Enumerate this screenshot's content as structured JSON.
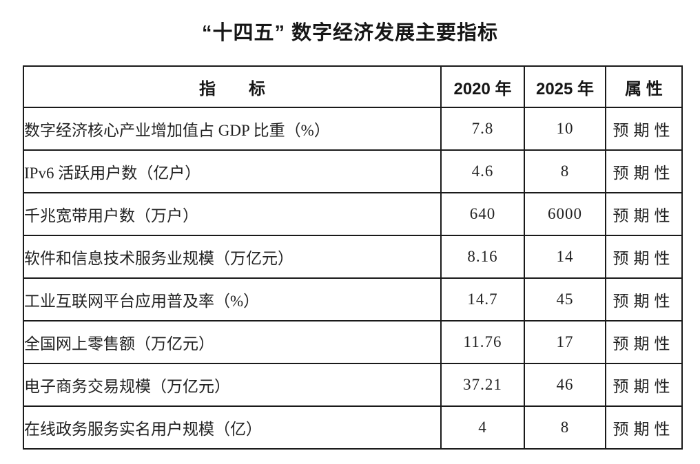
{
  "title": "“十四五” 数字经济发展主要指标",
  "table": {
    "headers": {
      "indicator": "指　　标",
      "y2020": "2020 年",
      "y2025": "2025 年",
      "attribute": "属 性"
    },
    "rows": [
      {
        "indicator": "数字经济核心产业增加值占 GDP 比重（%）",
        "y2020": "7.8",
        "y2025": "10",
        "attribute": "预期性"
      },
      {
        "indicator": "IPv6 活跃用户数（亿户）",
        "y2020": "4.6",
        "y2025": "8",
        "attribute": "预期性"
      },
      {
        "indicator": "千兆宽带用户数（万户）",
        "y2020": "640",
        "y2025": "6000",
        "attribute": "预期性"
      },
      {
        "indicator": "软件和信息技术服务业规模（万亿元）",
        "y2020": "8.16",
        "y2025": "14",
        "attribute": "预期性"
      },
      {
        "indicator": "工业互联网平台应用普及率（%）",
        "y2020": "14.7",
        "y2025": "45",
        "attribute": "预期性"
      },
      {
        "indicator": "全国网上零售额（万亿元）",
        "y2020": "11.76",
        "y2025": "17",
        "attribute": "预期性"
      },
      {
        "indicator": "电子商务交易规模（万亿元）",
        "y2020": "37.21",
        "y2025": "46",
        "attribute": "预期性"
      },
      {
        "indicator": "在线政务服务实名用户规模（亿）",
        "y2020": "4",
        "y2025": "8",
        "attribute": "预期性"
      }
    ]
  },
  "chart_data": {
    "type": "table",
    "title": "“十四五” 数字经济发展主要指标",
    "columns": [
      "指标",
      "2020 年",
      "2025 年",
      "属性"
    ],
    "rows": [
      [
        "数字经济核心产业增加值占 GDP 比重（%）",
        7.8,
        10,
        "预期性"
      ],
      [
        "IPv6 活跃用户数（亿户）",
        4.6,
        8,
        "预期性"
      ],
      [
        "千兆宽带用户数（万户）",
        640,
        6000,
        "预期性"
      ],
      [
        "软件和信息技术服务业规模（万亿元）",
        8.16,
        14,
        "预期性"
      ],
      [
        "工业互联网平台应用普及率（%）",
        14.7,
        45,
        "预期性"
      ],
      [
        "全国网上零售额（万亿元）",
        11.76,
        17,
        "预期性"
      ],
      [
        "电子商务交易规模（万亿元）",
        37.21,
        46,
        "预期性"
      ],
      [
        "在线政务服务实名用户规模（亿）",
        4,
        8,
        "预期性"
      ]
    ]
  },
  "colors": {
    "text": "#1c1c1c",
    "border": "#1a1a1a",
    "background": "#ffffff"
  }
}
